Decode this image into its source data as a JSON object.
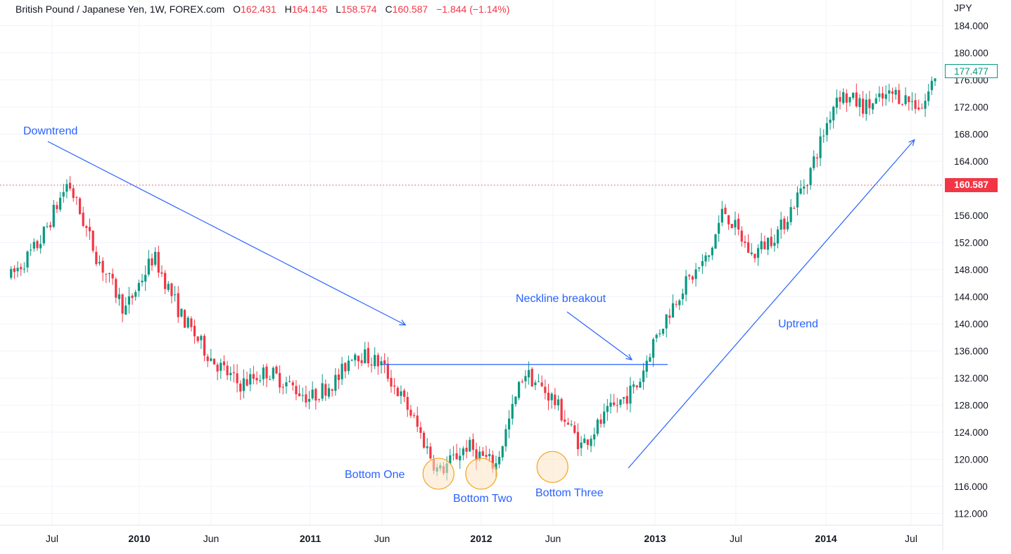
{
  "header": {
    "symbol": "British Pound / Japanese Yen, 1W, FOREX.com",
    "open_label": "O",
    "open_value": "162.431",
    "high_label": "H",
    "high_value": "164.145",
    "low_label": "L",
    "low_value": "158.574",
    "close_label": "C",
    "close_value": "160.587",
    "change": "−1.844 (−1.14%)"
  },
  "price_axis": {
    "unit": "JPY",
    "ticks": [
      "184.000",
      "180.000",
      "176.000",
      "172.000",
      "168.000",
      "164.000",
      "156.000",
      "152.000",
      "148.000",
      "144.000",
      "140.000",
      "136.000",
      "132.000",
      "128.000",
      "124.000",
      "120.000",
      "116.000",
      "112.000"
    ]
  },
  "time_axis": {
    "labels": [
      "Jul",
      "2010",
      "Jun",
      "2011",
      "Jun",
      "2012",
      "Jun",
      "2013",
      "Jul",
      "2014",
      "Jul"
    ]
  },
  "badges": {
    "last_price": "177.477",
    "close_line": "160.587"
  },
  "colors": {
    "up": "#089981",
    "down": "#f23645",
    "annotation": "#2962ff",
    "circle_fill": "#fbe3c3",
    "circle_stroke": "#f5a623",
    "grid": "#f0f3fa"
  },
  "annotations": {
    "downtrend": "Downtrend",
    "neckline": "Neckline breakout",
    "uptrend": "Uptrend",
    "bottom_one": "Bottom One",
    "bottom_two": "Bottom Two",
    "bottom_three": "Bottom Three"
  },
  "chart_data": {
    "type": "candlestick",
    "title": "British Pound / Japanese Yen, 1W, FOREX.com",
    "ylabel": "JPY",
    "ylim": [
      110,
      186
    ],
    "x_labels": [
      "Jul",
      "2010",
      "Jun",
      "2011",
      "Jun",
      "2012",
      "Jun",
      "2013",
      "Jul",
      "2014",
      "Jul"
    ],
    "price_path": {
      "x": [
        "2009-04",
        "2009-06",
        "2009-08",
        "2009-10",
        "2009-12",
        "2010-02",
        "2010-04",
        "2010-06",
        "2010-08",
        "2010-10",
        "2011-01",
        "2011-03",
        "2011-04",
        "2011-06",
        "2011-08",
        "2011-10",
        "2011-12",
        "2012-02",
        "2012-04",
        "2012-06",
        "2012-08",
        "2012-10",
        "2012-12",
        "2013-01",
        "2013-03",
        "2013-05",
        "2013-06",
        "2013-08",
        "2013-10",
        "2013-12",
        "2014-02",
        "2014-04",
        "2014-06",
        "2014-08",
        "2014-09"
      ],
      "close": [
        147,
        152,
        161,
        150,
        142,
        150,
        141,
        135,
        131,
        133,
        129,
        132,
        136,
        134,
        127,
        118,
        122,
        119,
        133,
        129,
        122,
        127,
        131,
        137,
        145,
        150,
        157,
        150,
        154,
        162,
        174,
        172,
        174,
        172,
        177.5
      ]
    },
    "pattern": {
      "downtrend_line": {
        "from": [
          "2009-08",
          165
        ],
        "to": [
          "2011-06",
          139
        ]
      },
      "neckline": {
        "from": [
          "2011-06",
          134
        ],
        "to": [
          "2013-01",
          134
        ],
        "level": 134
      },
      "uptrend_line": {
        "from": [
          "2012-10",
          119
        ],
        "to": [
          "2014-08",
          168
        ]
      },
      "bottoms": [
        {
          "label": "Bottom One",
          "x": "2011-10",
          "price": 118.5
        },
        {
          "label": "Bottom Two",
          "x": "2012-01",
          "price": 118.5
        },
        {
          "label": "Bottom Three",
          "x": "2012-06",
          "price": 119.5
        }
      ]
    },
    "last_price": 177.477,
    "close_line": 160.587,
    "grid": true
  }
}
